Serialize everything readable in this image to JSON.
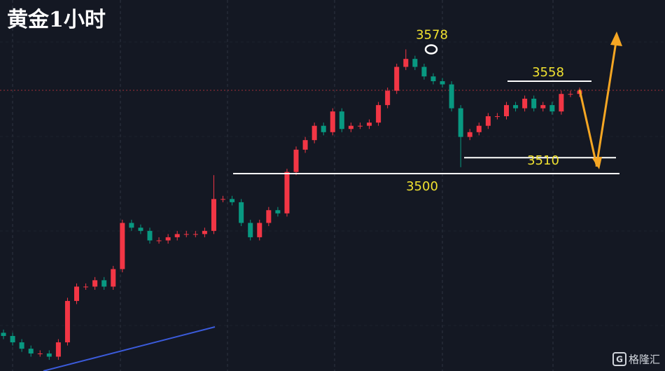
{
  "chart_data": {
    "type": "candlestick",
    "title": "黄金1小时",
    "open": [
      3400,
      3398,
      3394,
      3390,
      3387,
      3387,
      3385,
      3394,
      3420,
      3429,
      3429,
      3433,
      3429,
      3440,
      3469,
      3466,
      3464,
      3458,
      3458,
      3460,
      3462,
      3462,
      3462,
      3464,
      3484,
      3484,
      3482,
      3469,
      3460,
      3469,
      3477,
      3475,
      3501,
      3515,
      3521,
      3530,
      3526,
      3539,
      3528,
      3530,
      3530,
      3532,
      3543,
      3552,
      3567,
      3572,
      3567,
      3561,
      3558,
      3556,
      3541,
      3523,
      3526,
      3530,
      3536,
      3536,
      3543,
      3541,
      3547,
      3541,
      3543,
      3539,
      3550,
      3550
    ],
    "high": [
      3402,
      3400,
      3396,
      3392,
      3389,
      3389,
      3396,
      3422,
      3431,
      3431,
      3435,
      3435,
      3442,
      3471,
      3471,
      3468,
      3466,
      3460,
      3462,
      3464,
      3464,
      3464,
      3466,
      3499,
      3486,
      3486,
      3484,
      3471,
      3471,
      3479,
      3479,
      3503,
      3517,
      3523,
      3532,
      3532,
      3541,
      3541,
      3532,
      3532,
      3534,
      3545,
      3554,
      3569,
      3578,
      3574,
      3569,
      3563,
      3560,
      3558,
      3543,
      3528,
      3532,
      3538,
      3538,
      3545,
      3545,
      3549,
      3549,
      3545,
      3545,
      3552,
      3552,
      3554
    ],
    "low": [
      3396,
      3392,
      3388,
      3385,
      3385,
      3383,
      3383,
      3392,
      3418,
      3427,
      3427,
      3427,
      3427,
      3438,
      3464,
      3462,
      3456,
      3456,
      3456,
      3458,
      3460,
      3460,
      3460,
      3462,
      3482,
      3480,
      3467,
      3458,
      3458,
      3467,
      3473,
      3473,
      3499,
      3513,
      3519,
      3524,
      3524,
      3526,
      3526,
      3528,
      3528,
      3530,
      3541,
      3550,
      3565,
      3565,
      3559,
      3556,
      3554,
      3539,
      3504,
      3521,
      3524,
      3528,
      3534,
      3534,
      3539,
      3539,
      3539,
      3539,
      3537,
      3537,
      3548,
      3548
    ],
    "close": [
      3398,
      3394,
      3390,
      3387,
      3387,
      3385,
      3394,
      3420,
      3429,
      3429,
      3433,
      3429,
      3440,
      3469,
      3466,
      3464,
      3458,
      3458,
      3460,
      3462,
      3462,
      3462,
      3464,
      3484,
      3484,
      3482,
      3469,
      3460,
      3469,
      3477,
      3475,
      3501,
      3515,
      3521,
      3530,
      3526,
      3539,
      3528,
      3530,
      3530,
      3532,
      3543,
      3552,
      3567,
      3572,
      3567,
      3561,
      3558,
      3556,
      3541,
      3523,
      3526,
      3530,
      3536,
      3536,
      3543,
      3541,
      3547,
      3541,
      3543,
      3539,
      3550,
      3550,
      3552
    ],
    "up_color": "#f23645",
    "down_color": "#089981",
    "ylim": [
      3376,
      3609
    ],
    "levels": [
      3578,
      3558,
      3510,
      3500
    ],
    "watermark": "格隆汇"
  }
}
